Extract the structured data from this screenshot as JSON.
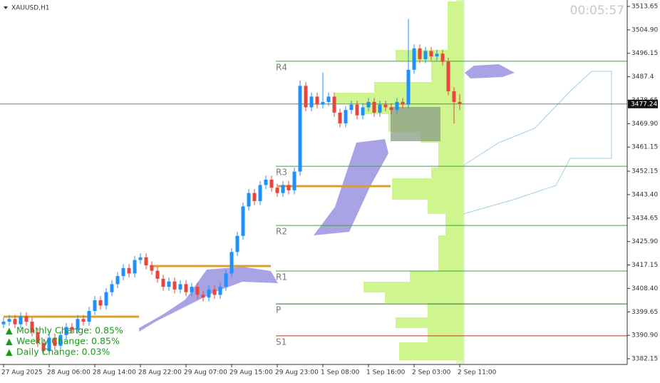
{
  "chart_data": {
    "type": "candlestick",
    "title": "XAUUSD,H1",
    "timer": "00:05:57",
    "up_color": "#1e90ff",
    "down_color": "#e8453c",
    "categories": [
      "27 Aug 2025",
      null,
      null,
      null,
      null,
      null,
      null,
      null,
      "28 Aug 06:00",
      null,
      null,
      null,
      null,
      null,
      null,
      null,
      "28 Aug 14:00",
      null,
      null,
      null,
      null,
      null,
      null,
      null,
      "28 Aug 22:00",
      null,
      null,
      null,
      null,
      null,
      null,
      null,
      "29 Aug 07:00",
      null,
      null,
      null,
      null,
      null,
      null,
      null,
      "29 Aug 15:00",
      null,
      null,
      null,
      null,
      null,
      null,
      null,
      "29 Aug 23:00",
      null,
      null,
      null,
      null,
      null,
      null,
      null,
      "1 Sep 08:00",
      null,
      null,
      null,
      null,
      null,
      null,
      null,
      "1 Sep 16:00",
      null,
      null,
      null,
      null,
      null,
      null,
      null,
      "2 Sep 03:00",
      null,
      null,
      null,
      null,
      null,
      null,
      null,
      "2 Sep 11:00"
    ],
    "ohlc": [
      [
        3395,
        3397.5,
        3393.5,
        3396
      ],
      [
        3396,
        3398.5,
        3394.5,
        3397
      ],
      [
        3397,
        3398.5,
        3393.5,
        3395
      ],
      [
        3395,
        3399.5,
        3393.5,
        3398
      ],
      [
        3398,
        3399.5,
        3394.5,
        3396
      ],
      [
        3396,
        3397.5,
        3390.5,
        3392
      ],
      [
        3392,
        3393.5,
        3386.5,
        3388
      ],
      [
        3388,
        3389.5,
        3383.5,
        3385
      ],
      [
        3385,
        3391.5,
        3383.5,
        3390
      ],
      [
        3390,
        3391.5,
        3385.5,
        3387
      ],
      [
        3387,
        3392.5,
        3385.5,
        3391
      ],
      [
        3391,
        3395.5,
        3389.5,
        3394
      ],
      [
        3394,
        3395.5,
        3391.5,
        3393
      ],
      [
        3393,
        3398.5,
        3391.5,
        3397
      ],
      [
        3397,
        3398.5,
        3394.5,
        3396
      ],
      [
        3396,
        3401.5,
        3394.5,
        3400
      ],
      [
        3400,
        3405.5,
        3398.5,
        3404
      ],
      [
        3404,
        3405.5,
        3400.5,
        3402
      ],
      [
        3402,
        3408.5,
        3400.5,
        3407
      ],
      [
        3407,
        3411.5,
        3405.5,
        3410
      ],
      [
        3410,
        3414.5,
        3408.5,
        3413
      ],
      [
        3413,
        3417.5,
        3411.5,
        3416
      ],
      [
        3416,
        3417.5,
        3412.5,
        3414
      ],
      [
        3414,
        3420.5,
        3412.5,
        3419
      ],
      [
        3419,
        3421.5,
        3417.5,
        3420
      ],
      [
        3420,
        3421.5,
        3415.5,
        3417
      ],
      [
        3417,
        3418.5,
        3413.5,
        3415
      ],
      [
        3415,
        3416.5,
        3410.5,
        3412
      ],
      [
        3412,
        3413.5,
        3407.5,
        3409
      ],
      [
        3409,
        3412.5,
        3407.5,
        3411
      ],
      [
        3411,
        3412.5,
        3406.5,
        3408
      ],
      [
        3408,
        3411.5,
        3406.5,
        3410
      ],
      [
        3410,
        3411.5,
        3405.5,
        3407
      ],
      [
        3407,
        3410.5,
        3405.5,
        3409
      ],
      [
        3409,
        3410.5,
        3404.5,
        3406
      ],
      [
        3406,
        3407.5,
        3403.5,
        3405
      ],
      [
        3405,
        3409.5,
        3403.5,
        3408
      ],
      [
        3408,
        3409.5,
        3404.5,
        3406
      ],
      [
        3406,
        3410.5,
        3404.5,
        3409
      ],
      [
        3409,
        3415.5,
        3407.5,
        3414
      ],
      [
        3414,
        3423.5,
        3412.5,
        3422
      ],
      [
        3422,
        3429.5,
        3420.5,
        3428
      ],
      [
        3428,
        3440.5,
        3426.5,
        3439
      ],
      [
        3439,
        3445.5,
        3437.5,
        3444
      ],
      [
        3444,
        3445.5,
        3439.5,
        3441
      ],
      [
        3441,
        3448.5,
        3439.5,
        3447
      ],
      [
        3447,
        3450.5,
        3445.5,
        3449
      ],
      [
        3449,
        3450.5,
        3444.5,
        3446
      ],
      [
        3446,
        3447.5,
        3442.5,
        3444
      ],
      [
        3444,
        3448.5,
        3442.5,
        3447
      ],
      [
        3447,
        3448.5,
        3443.5,
        3445
      ],
      [
        3445,
        3453.5,
        3443.5,
        3452
      ],
      [
        3452,
        3486,
        3450.5,
        3484
      ],
      [
        3484,
        3485.5,
        3474.5,
        3476
      ],
      [
        3476,
        3481.5,
        3474.5,
        3480
      ],
      [
        3480,
        3481.5,
        3475.5,
        3477
      ],
      [
        3477,
        3489,
        3475.5,
        3478
      ],
      [
        3478,
        3481.5,
        3476.5,
        3480
      ],
      [
        3480,
        3481.5,
        3472.5,
        3474
      ],
      [
        3474,
        3475.5,
        3468.5,
        3470
      ],
      [
        3470,
        3476.5,
        3468.5,
        3475
      ],
      [
        3475,
        3478.5,
        3473.5,
        3477
      ],
      [
        3477,
        3478.5,
        3471.5,
        3473
      ],
      [
        3473,
        3477.5,
        3471.5,
        3476
      ],
      [
        3476,
        3479.5,
        3474.5,
        3478
      ],
      [
        3478,
        3479.5,
        3472.5,
        3474
      ],
      [
        3474,
        3478.5,
        3472.5,
        3477
      ],
      [
        3477,
        3478.5,
        3474.5,
        3476
      ],
      [
        3476,
        3477.5,
        3473.5,
        3475
      ],
      [
        3475,
        3479.5,
        3473.5,
        3478
      ],
      [
        3478,
        3479.5,
        3475.5,
        3477
      ],
      [
        3477,
        3509,
        3475.5,
        3490
      ],
      [
        3490,
        3499.5,
        3488.5,
        3498
      ],
      [
        3498,
        3499.5,
        3492.5,
        3494
      ],
      [
        3494,
        3498.5,
        3492.5,
        3497
      ],
      [
        3497,
        3498.5,
        3493.5,
        3495
      ],
      [
        3495,
        3497.5,
        3493.5,
        3496
      ],
      [
        3496,
        3497.5,
        3491.5,
        3493
      ],
      [
        3493,
        3494.5,
        3480.5,
        3482
      ],
      [
        3482,
        3483.5,
        3470,
        3478
      ],
      [
        3478,
        3481,
        3475,
        3477.24
      ]
    ],
    "ylim": [
      3382.15,
      3513.65
    ],
    "yticks": [
      3513.65,
      {
        "value": 3504.9,
        "label": "3504.90"
      },
      3496.15,
      3487.4,
      3478.65,
      {
        "value": 3469.9,
        "label": "3469.90"
      },
      3461.15,
      3452.15,
      {
        "value": 3443.4,
        "label": "3443.40"
      },
      3434.65,
      {
        "value": 3425.9,
        "label": "3425.90"
      },
      3417.15,
      {
        "value": 3408.4,
        "label": "3408.40"
      },
      3399.65,
      {
        "value": 3390.9,
        "label": "3390.90"
      },
      3382.15
    ],
    "current_price": 3477.24,
    "levels": [
      {
        "name": "R4",
        "value": 3493.2,
        "color": "#3aa63a"
      },
      {
        "name": "R3",
        "value": 3454.0,
        "color": "#3aa63a"
      },
      {
        "name": "R2",
        "value": 3431.9,
        "color": "#3aa63a"
      },
      {
        "name": "R1",
        "value": 3414.9,
        "color": "#3aa63a"
      },
      {
        "name": "P",
        "value": 3402.6,
        "color": "#2f6b2f"
      },
      {
        "name": "S1",
        "value": 3390.7,
        "color": "#c0392b"
      }
    ],
    "changes": [
      "Monthly Change: 0.85%",
      "Weekly Change: 0.85%",
      "Daily Change: 0.03%"
    ]
  }
}
